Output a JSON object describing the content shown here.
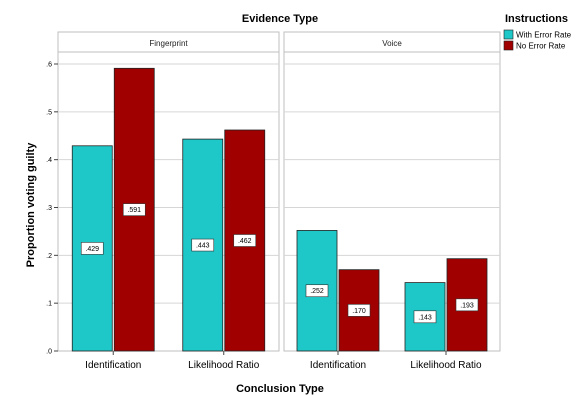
{
  "chart_data": {
    "type": "bar",
    "title": "Evidence Type",
    "xlabel": "Conclusion Type",
    "ylabel": "Proportion voting guilty",
    "ylim": [
      0,
      0.6
    ],
    "yticks": [
      0,
      0.1,
      0.2,
      0.3,
      0.4,
      0.5,
      0.6
    ],
    "ytick_labels": [
      ".0",
      ".1",
      ".2",
      ".3",
      ".4",
      ".5",
      ".6"
    ],
    "categories": [
      "Identification",
      "Likelihood Ratio"
    ],
    "panels": [
      {
        "name": "Fingerprint",
        "series": [
          {
            "name": "With Error Rate",
            "values": [
              0.429,
              0.443
            ],
            "labels": [
              ".429",
              ".443"
            ]
          },
          {
            "name": "No Error Rate",
            "values": [
              0.591,
              0.462
            ],
            "labels": [
              ".591",
              ".462"
            ]
          }
        ]
      },
      {
        "name": "Voice",
        "series": [
          {
            "name": "With Error Rate",
            "values": [
              0.252,
              0.143
            ],
            "labels": [
              ".252",
              ".143"
            ]
          },
          {
            "name": "No Error Rate",
            "values": [
              0.17,
              0.193
            ],
            "labels": [
              ".170",
              ".193"
            ]
          }
        ]
      }
    ],
    "legend": {
      "title": "Instructions",
      "placement": "top-right",
      "items": [
        "With Error Rate",
        "No Error Rate"
      ]
    },
    "colors": {
      "With Error Rate": "#1ec8c8",
      "No Error Rate": "#a00000"
    },
    "grid": true
  }
}
